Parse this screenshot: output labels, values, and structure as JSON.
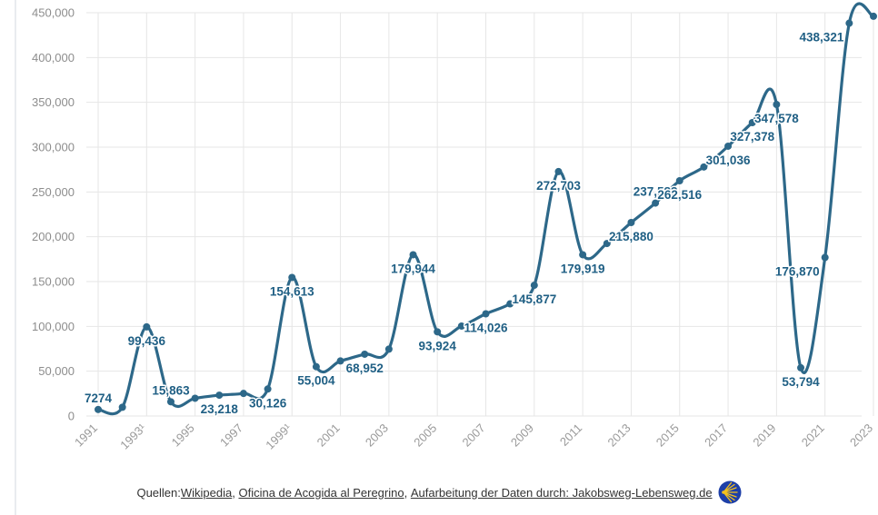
{
  "colors": {
    "line": "#2d6889",
    "label": "#1f5f84",
    "grid": "#e6e6e6",
    "tick": "#8d8d8d",
    "shell_bg": "#1d3fa8",
    "shell_fg": "#f6c21c"
  },
  "chart_data": {
    "type": "line",
    "title": "",
    "xlabel": "",
    "ylabel": "",
    "ylim": [
      0,
      450000
    ],
    "yticks": [
      0,
      50000,
      100000,
      150000,
      200000,
      250000,
      300000,
      350000,
      400000,
      450000
    ],
    "ytick_labels": [
      "0",
      "50,000",
      "100,000",
      "150,000",
      "200,000",
      "250,000",
      "300,000",
      "350,000",
      "400,000",
      "450,000"
    ],
    "xlim": [
      1991,
      2023
    ],
    "xtick_labels": [
      {
        "x": 1991,
        "label": "1991"
      },
      {
        "x": 1993,
        "label": "1993¹"
      },
      {
        "x": 1995,
        "label": "1995"
      },
      {
        "x": 1997,
        "label": "1997"
      },
      {
        "x": 1999,
        "label": "1999¹"
      },
      {
        "x": 2001,
        "label": "2001"
      },
      {
        "x": 2003,
        "label": "2003"
      },
      {
        "x": 2005,
        "label": "2005"
      },
      {
        "x": 2007,
        "label": "2007"
      },
      {
        "x": 2009,
        "label": "2009"
      },
      {
        "x": 2011,
        "label": "2011"
      },
      {
        "x": 2013,
        "label": "2013"
      },
      {
        "x": 2015,
        "label": "2015"
      },
      {
        "x": 2017,
        "label": "2017"
      },
      {
        "x": 2019,
        "label": "2019"
      },
      {
        "x": 2021,
        "label": "2021"
      },
      {
        "x": 2023,
        "label": "2023"
      }
    ],
    "grid": true,
    "series": [
      {
        "points": [
          {
            "x": 1991,
            "y": 7274
          },
          {
            "x": 1992,
            "y": 9764
          },
          {
            "x": 1993,
            "y": 99436
          },
          {
            "x": 1994,
            "y": 15863
          },
          {
            "x": 1995,
            "y": 19821
          },
          {
            "x": 1996,
            "y": 23218
          },
          {
            "x": 1997,
            "y": 25179
          },
          {
            "x": 1998,
            "y": 30126
          },
          {
            "x": 1999,
            "y": 154613
          },
          {
            "x": 2000,
            "y": 55004
          },
          {
            "x": 2001,
            "y": 61418
          },
          {
            "x": 2002,
            "y": 68952
          },
          {
            "x": 2003,
            "y": 74614
          },
          {
            "x": 2004,
            "y": 179944
          },
          {
            "x": 2005,
            "y": 93924
          },
          {
            "x": 2006,
            "y": 100377
          },
          {
            "x": 2007,
            "y": 114026
          },
          {
            "x": 2008,
            "y": 125141
          },
          {
            "x": 2009,
            "y": 145877
          },
          {
            "x": 2010,
            "y": 272703
          },
          {
            "x": 2011,
            "y": 179919
          },
          {
            "x": 2012,
            "y": 192488
          },
          {
            "x": 2013,
            "y": 215880
          },
          {
            "x": 2014,
            "y": 237583
          },
          {
            "x": 2015,
            "y": 262516
          },
          {
            "x": 2016,
            "y": 277854
          },
          {
            "x": 2017,
            "y": 301036
          },
          {
            "x": 2018,
            "y": 327378
          },
          {
            "x": 2019,
            "y": 347578
          },
          {
            "x": 2020,
            "y": 53794
          },
          {
            "x": 2021,
            "y": 176870
          },
          {
            "x": 2022,
            "y": 438321
          },
          {
            "x": 2023,
            "y": 446035
          }
        ]
      }
    ],
    "data_labels": [
      {
        "x": 1991,
        "text": "7274",
        "pos": "above"
      },
      {
        "x": 1993,
        "text": "99,436",
        "pos": "below"
      },
      {
        "x": 1994,
        "text": "15,863",
        "pos": "above"
      },
      {
        "x": 1996,
        "text": "23,218",
        "pos": "below"
      },
      {
        "x": 1998,
        "text": "30,126",
        "pos": "below"
      },
      {
        "x": 1999,
        "text": "154,613",
        "pos": "below"
      },
      {
        "x": 2000,
        "text": "55,004",
        "pos": "below"
      },
      {
        "x": 2002,
        "text": "68,952",
        "pos": "below"
      },
      {
        "x": 2004,
        "text": "179,944",
        "pos": "below"
      },
      {
        "x": 2005,
        "text": "93,924",
        "pos": "below"
      },
      {
        "x": 2007,
        "text": "114,026",
        "pos": "below"
      },
      {
        "x": 2009,
        "text": "145,877",
        "pos": "below"
      },
      {
        "x": 2010,
        "text": "272,703",
        "pos": "below"
      },
      {
        "x": 2011,
        "text": "179,919",
        "pos": "below"
      },
      {
        "x": 2013,
        "text": "215,880",
        "pos": "below"
      },
      {
        "x": 2014,
        "text": "237,583",
        "pos": "above"
      },
      {
        "x": 2015,
        "text": "262,516",
        "pos": "below"
      },
      {
        "x": 2017,
        "text": "301,036",
        "pos": "below"
      },
      {
        "x": 2018,
        "text": "327,378",
        "pos": "below"
      },
      {
        "x": 2019,
        "text": "347,578",
        "pos": "below"
      },
      {
        "x": 2020,
        "text": "53,794",
        "pos": "below"
      },
      {
        "x": 2021,
        "text": "176,870",
        "pos": "left"
      },
      {
        "x": 2022,
        "text": "438,321",
        "pos": "left"
      }
    ]
  },
  "footer": {
    "prefix": "Quellen: ",
    "link1": "Wikipedia",
    "sep1": ", ",
    "link2": "Oficina de Acogida al Peregrino",
    "sep2": ", ",
    "link3": "Aufarbeitung der Daten durch: Jakobsweg-Lebensweg.de",
    "shell_icon": "scallop-shell-icon"
  }
}
